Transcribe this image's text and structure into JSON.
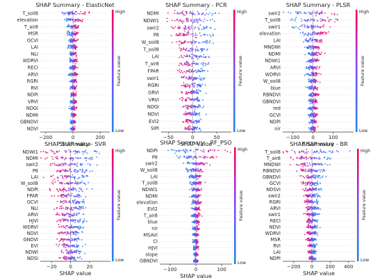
{
  "chart_data": [
    {
      "type": "scatter",
      "title": "SHAP Summary - ElasticNet",
      "xlabel": "SHAP value",
      "colorbar_label": "Feature value",
      "colorbar_high": "High",
      "colorbar_low": "Low",
      "features": [
        "T_soil8",
        "elevation",
        "T_air8",
        "MSR",
        "GCVI",
        "LAI",
        "NLI",
        "WDRVI",
        "RECI",
        "ARVI",
        "RGRI",
        "RVI",
        "NDPI",
        "VRVI",
        "NDGI",
        "NDMI",
        "GBNDVI",
        "NDVI"
      ],
      "spread": [
        130,
        80,
        55,
        40,
        35,
        35,
        30,
        30,
        30,
        30,
        25,
        25,
        25,
        25,
        25,
        22,
        22,
        20
      ],
      "xlim": [
        -240,
        270
      ],
      "xticks": [
        -200,
        0,
        200
      ]
    },
    {
      "type": "scatter",
      "title": "SHAP Summary - PCR",
      "xlabel": "SHAP value",
      "colorbar_label": "Feature value",
      "colorbar_high": "High",
      "colorbar_low": "Low",
      "features": [
        "NDMI",
        "NDWI1",
        "swir2",
        "P8",
        "W_soil8",
        "T_soil8",
        "LAI",
        "T_air8",
        "FPAR",
        "swir1",
        "RGRI",
        "GRVI",
        "VRVI",
        "NDGI",
        "NDVI",
        "EVI2",
        "SIPI"
      ],
      "spread": [
        60,
        55,
        50,
        45,
        40,
        38,
        35,
        32,
        30,
        28,
        26,
        25,
        24,
        22,
        22,
        20,
        18
      ],
      "xlim": [
        -65,
        80
      ],
      "xticks": [
        -50,
        0,
        50
      ]
    },
    {
      "type": "scatter",
      "title": "SHAP Summary - PLSR",
      "xlabel": "SHAP value",
      "colorbar_label": "Feature value",
      "colorbar_high": "High",
      "colorbar_low": "Low",
      "features": [
        "swir2",
        "T_soil8",
        "swir1",
        "elevation",
        "LAI",
        "MNDWI",
        "NDMI",
        "NDWI1",
        "ARVI",
        "WDRVI",
        "W_soil8",
        "blue",
        "RBNDVI",
        "GBNDVI",
        "red",
        "GCVI",
        "NDPI",
        "nir"
      ],
      "spread": [
        140,
        120,
        90,
        70,
        50,
        45,
        40,
        38,
        35,
        33,
        30,
        28,
        26,
        25,
        24,
        22,
        20,
        18
      ],
      "xlim": [
        -150,
        200
      ],
      "xticks": [
        -100,
        0,
        100
      ]
    },
    {
      "type": "scatter",
      "title": "SHAP Summary - SVR",
      "xlabel": "SHAP value",
      "colorbar_label": "Feature value",
      "colorbar_high": "High",
      "colorbar_low": "Low",
      "features": [
        "NDWI1",
        "NDMI",
        "swir2",
        "P8",
        "LAI",
        "W_soil8",
        "NDPI",
        "FPAR",
        "GCVI",
        "NLI",
        "ARVI",
        "HJVI",
        "WDRVI",
        "NDVI",
        "GNDVI",
        "EVI",
        "NDWI",
        "NDSI"
      ],
      "spread": [
        30,
        28,
        26,
        24,
        22,
        20,
        20,
        18,
        18,
        17,
        16,
        16,
        15,
        15,
        14,
        14,
        13,
        12
      ],
      "xlim": [
        -32,
        42
      ],
      "xticks": [
        -20,
        0,
        20
      ]
    },
    {
      "type": "scatter",
      "title": "SHAP Summary - RF_PSO",
      "xlabel": "SHAP value",
      "colorbar_label": "Feature value",
      "colorbar_high": "High",
      "colorbar_low": "Low",
      "features": [
        "NDPI",
        "P8",
        "swir2",
        "W_soil8",
        "LAI",
        "T_soil8",
        "NDWI1",
        "NDMI",
        "elevation",
        "EVI2",
        "T_air8",
        "blue",
        "nir",
        "MSAVI",
        "CI",
        "HJVI",
        "slope",
        "GBNDVI"
      ],
      "spread": [
        110,
        70,
        50,
        35,
        30,
        28,
        25,
        22,
        20,
        18,
        16,
        15,
        14,
        13,
        12,
        12,
        11,
        10
      ],
      "xlim": [
        -140,
        140
      ],
      "xticks": [
        -100,
        0,
        100
      ]
    },
    {
      "type": "scatter",
      "title": "SHAP Summary - BR",
      "xlabel": "SHAP value",
      "colorbar_label": "Feature value",
      "colorbar_high": "High",
      "colorbar_low": "Low",
      "features": [
        "T_soil8",
        "T_air8",
        "MNDWI",
        "RBNDVI",
        "GBNDVI",
        "GCVI",
        "NDSVI",
        "swir2",
        "RGRI",
        "ARVI",
        "swir1",
        "RECI",
        "NDVI",
        "WDRVI",
        "MSR",
        "RVI",
        "LAI",
        "NDPI"
      ],
      "spread": [
        320,
        250,
        200,
        160,
        140,
        120,
        110,
        100,
        90,
        85,
        80,
        75,
        70,
        65,
        60,
        55,
        50,
        45
      ],
      "xlim": [
        -320,
        470
      ],
      "xticks": [
        -200,
        0,
        200,
        400
      ]
    }
  ]
}
